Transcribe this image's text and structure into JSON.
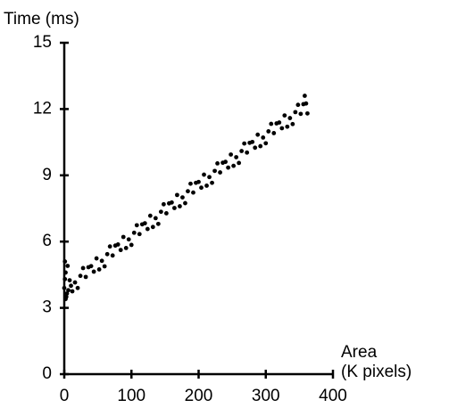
{
  "chart_data": {
    "type": "scatter",
    "ylabel": "Time (ms)",
    "xlabel": [
      "Area",
      "(K pixels)"
    ],
    "color": "#000000",
    "xlim": [
      0,
      400
    ],
    "xticks": [
      0,
      100,
      200,
      300,
      400
    ],
    "ylim": [
      0,
      15
    ],
    "yticks": [
      0,
      3,
      6,
      9,
      12,
      15
    ],
    "grid": false,
    "x": [
      0,
      4,
      8,
      12,
      16,
      20,
      24,
      28,
      32,
      36,
      40,
      44,
      48,
      52,
      56,
      60,
      64,
      68,
      72,
      76,
      80,
      84,
      88,
      92,
      96,
      100,
      104,
      108,
      112,
      116,
      120,
      124,
      128,
      132,
      136,
      140,
      144,
      148,
      152,
      156,
      160,
      164,
      168,
      172,
      176,
      180,
      184,
      188,
      192,
      196,
      200,
      204,
      208,
      212,
      216,
      220,
      224,
      228,
      232,
      236,
      240,
      244,
      248,
      252,
      256,
      260,
      264,
      268,
      272,
      276,
      280,
      284,
      288,
      292,
      296,
      300,
      304,
      308,
      312,
      316,
      320,
      324,
      328,
      332,
      336,
      340,
      344,
      348,
      352,
      356,
      360,
      1,
      2,
      1,
      3,
      2,
      5,
      6,
      10,
      358,
      362
    ],
    "y": [
      3.9,
      3.65,
      4.25,
      3.75,
      4.15,
      3.9,
      4.45,
      4.8,
      4.4,
      4.84,
      4.89,
      4.64,
      5.24,
      4.74,
      5.13,
      4.88,
      5.43,
      5.78,
      5.37,
      5.82,
      5.87,
      5.62,
      6.21,
      5.71,
      6.1,
      5.85,
      6.4,
      6.74,
      6.34,
      6.78,
      6.83,
      6.57,
      7.17,
      6.66,
      7.06,
      6.8,
      7.35,
      7.69,
      7.28,
      7.73,
      7.77,
      7.52,
      8.11,
      7.6,
      8.0,
      7.74,
      8.28,
      8.62,
      8.22,
      8.66,
      8.7,
      8.44,
      9.03,
      8.53,
      8.92,
      8.66,
      9.2,
      9.54,
      9.13,
      9.57,
      9.61,
      9.35,
      9.94,
      9.43,
      9.82,
      9.56,
      10.1,
      10.44,
      10.03,
      10.47,
      10.51,
      10.25,
      10.84,
      10.32,
      10.71,
      10.45,
      10.99,
      11.33,
      10.91,
      11.35,
      11.39,
      11.13,
      11.71,
      11.2,
      11.59,
      11.32,
      11.86,
      12.19,
      11.78,
      12.22,
      12.25,
      5.1,
      4.6,
      4.3,
      3.5,
      3.4,
      4.9,
      3.8,
      4.0,
      12.6,
      11.8
    ]
  }
}
